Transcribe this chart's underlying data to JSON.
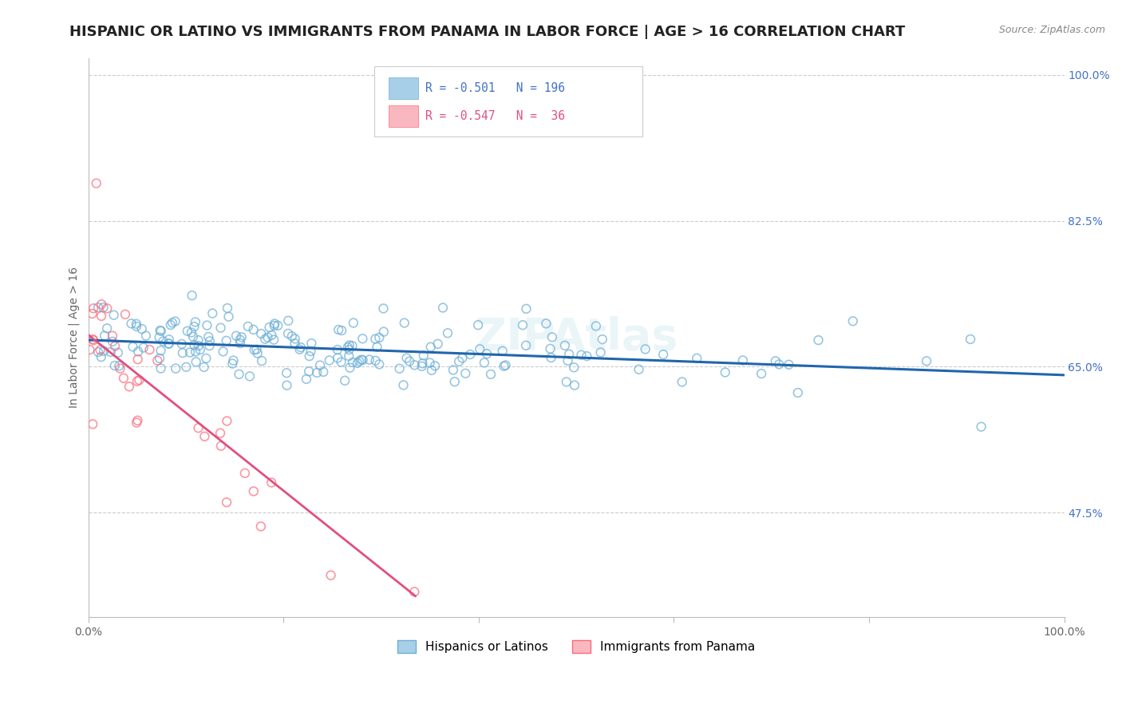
{
  "title": "HISPANIC OR LATINO VS IMMIGRANTS FROM PANAMA IN LABOR FORCE | AGE > 16 CORRELATION CHART",
  "source": "Source: ZipAtlas.com",
  "ylabel": "In Labor Force | Age > 16",
  "xlim": [
    0.0,
    1.0
  ],
  "ylim": [
    0.35,
    1.02
  ],
  "xticks": [
    0.0,
    0.2,
    0.4,
    0.6,
    0.8,
    1.0
  ],
  "xticklabels": [
    "0.0%",
    "",
    "",
    "",
    "",
    "100.0%"
  ],
  "ytick_positions": [
    0.475,
    0.65,
    0.825,
    1.0
  ],
  "ytick_labels": [
    "47.5%",
    "65.0%",
    "82.5%",
    "100.0%"
  ],
  "blue_R": "-0.501",
  "blue_N": "196",
  "pink_R": "-0.547",
  "pink_N": "36",
  "blue_color": "#a8cfe8",
  "pink_color": "#f9b8c0",
  "blue_edge_color": "#6baed6",
  "pink_edge_color": "#fb6a7a",
  "blue_line_color": "#2166ac",
  "pink_line_color": "#e05080",
  "legend_blue_label": "Hispanics or Latinos",
  "legend_pink_label": "Immigrants from Panama",
  "watermark": "ZIPAtlas",
  "title_fontsize": 13,
  "axis_label_fontsize": 10,
  "tick_fontsize": 10,
  "blue_trendline_x": [
    0.0,
    1.0
  ],
  "blue_trendline_y": [
    0.682,
    0.64
  ],
  "pink_trendline_x": [
    0.0,
    0.335
  ],
  "pink_trendline_y": [
    0.688,
    0.375
  ]
}
